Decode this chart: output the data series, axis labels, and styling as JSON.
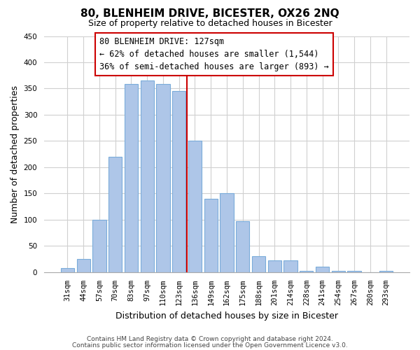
{
  "title": "80, BLENHEIM DRIVE, BICESTER, OX26 2NQ",
  "subtitle": "Size of property relative to detached houses in Bicester",
  "xlabel": "Distribution of detached houses by size in Bicester",
  "ylabel": "Number of detached properties",
  "bar_labels": [
    "31sqm",
    "44sqm",
    "57sqm",
    "70sqm",
    "83sqm",
    "97sqm",
    "110sqm",
    "123sqm",
    "136sqm",
    "149sqm",
    "162sqm",
    "175sqm",
    "188sqm",
    "201sqm",
    "214sqm",
    "228sqm",
    "241sqm",
    "254sqm",
    "267sqm",
    "280sqm",
    "293sqm"
  ],
  "bar_values": [
    8,
    25,
    100,
    220,
    358,
    365,
    358,
    345,
    250,
    140,
    150,
    97,
    30,
    22,
    22,
    3,
    10,
    2,
    2,
    0,
    2
  ],
  "bar_color": "#aec6e8",
  "bar_edge_color": "#7aacda",
  "vline_color": "#cc0000",
  "vline_position": 7.5,
  "ylim": [
    0,
    450
  ],
  "yticks": [
    0,
    50,
    100,
    150,
    200,
    250,
    300,
    350,
    400,
    450
  ],
  "annotation_title": "80 BLENHEIM DRIVE: 127sqm",
  "annotation_line1": "← 62% of detached houses are smaller (1,544)",
  "annotation_line2": "36% of semi-detached houses are larger (893) →",
  "footer1": "Contains HM Land Registry data © Crown copyright and database right 2024.",
  "footer2": "Contains public sector information licensed under the Open Government Licence v3.0.",
  "background_color": "#ffffff",
  "grid_color": "#d0d0d0",
  "title_fontsize": 11,
  "subtitle_fontsize": 9,
  "xlabel_fontsize": 9,
  "ylabel_fontsize": 9,
  "tick_fontsize": 7.5,
  "footer_fontsize": 6.5,
  "annotation_fontsize": 8.5
}
